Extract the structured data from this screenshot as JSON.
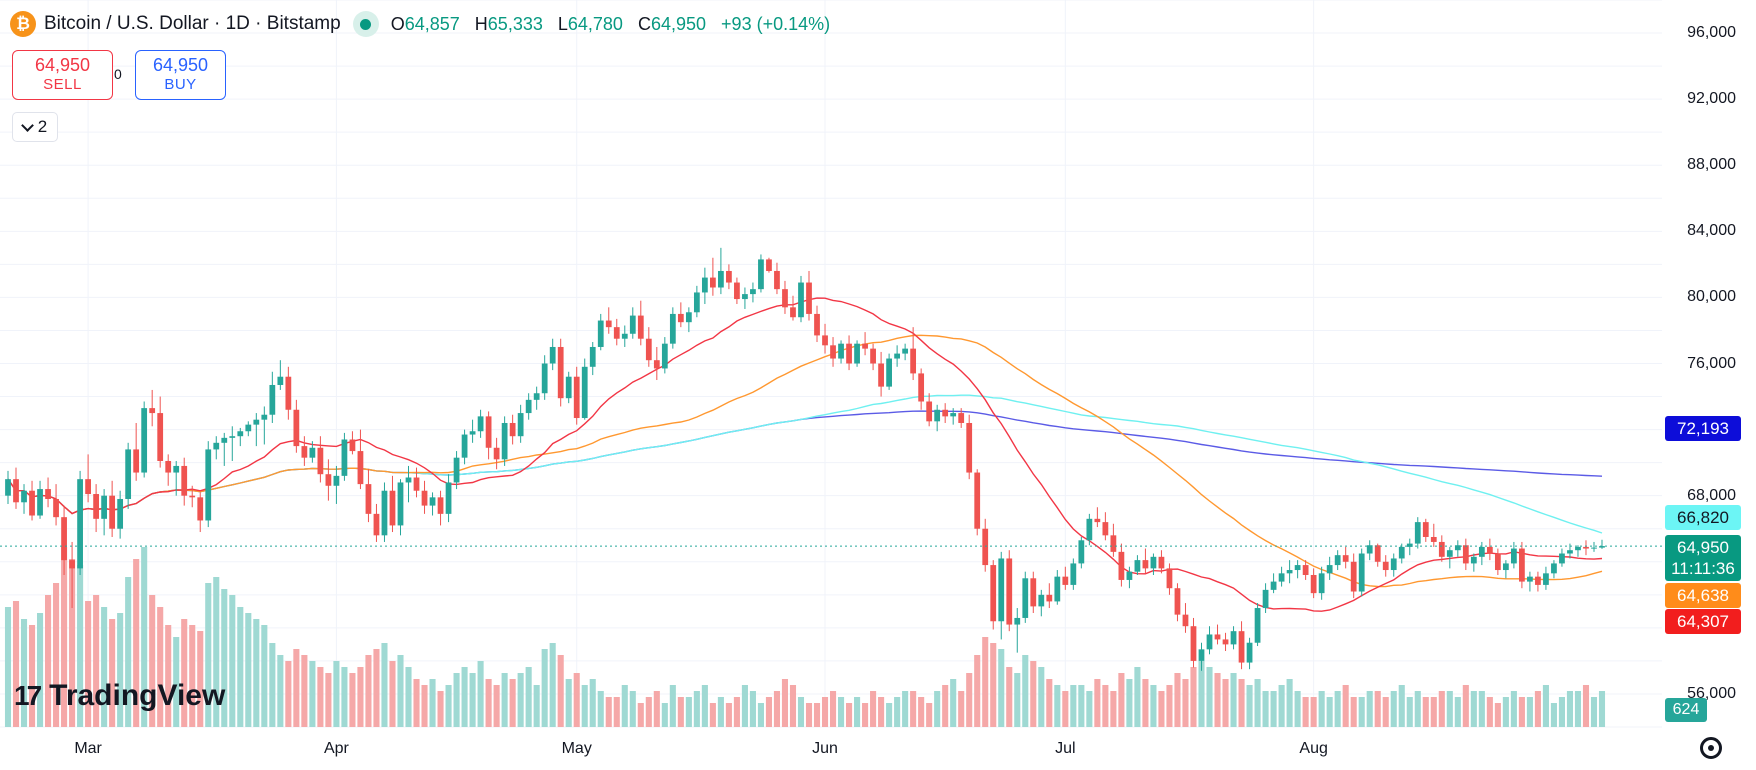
{
  "header": {
    "symbol": "Bitcoin / U.S. Dollar · 1D · Bitstamp",
    "coin_glyph": "₿",
    "ohlc": {
      "open_label": "O",
      "open": "64,857",
      "high_label": "H",
      "high": "65,333",
      "low_label": "L",
      "low": "64,780",
      "close_label": "C",
      "close": "64,950",
      "change": "+93 (+0.14%)"
    }
  },
  "trade": {
    "sell_price": "64,950",
    "sell_label": "SELL",
    "buy_price": "64,950",
    "buy_label": "BUY",
    "spread": "0"
  },
  "indicators_toggle": {
    "count": "2"
  },
  "price_tags": {
    "ma200": "72,193",
    "ma100": "66,820",
    "close": "64,950",
    "countdown": "11:11:36",
    "ma50": "64,638",
    "ma20": "64,307",
    "volume": "624"
  },
  "branding": {
    "logo_mark": "17",
    "logo_text": "TradingView"
  },
  "colors": {
    "up": "#26a69a",
    "down": "#ef5350",
    "ma20": "#f23645",
    "ma50": "#ff9830",
    "ma100": "#6ff0f0",
    "ma200": "#5b5be6",
    "tag_ma200": "#0d0dd9",
    "tag_ma100": "#6cf5f5",
    "tag_ma50": "#ff8c1a",
    "tag_ma20": "#f21e1e",
    "vol_up": "#9fd9d3",
    "vol_down": "#f5a8a8"
  },
  "chart_data": {
    "type": "candlestick",
    "title": "Bitcoin / U.S. Dollar · 1D · Bitstamp",
    "ylim": [
      54000,
      98000
    ],
    "yticks": [
      "96,000",
      "92,000",
      "88,000",
      "84,000",
      "80,000",
      "76,000",
      "68,000",
      "56,000"
    ],
    "xticks": [
      {
        "label": "Mar",
        "date": "2024-03-01"
      },
      {
        "label": "Apr",
        "date": "2024-04-01"
      },
      {
        "label": "May",
        "date": "2024-05-01"
      },
      {
        "label": "Jun",
        "date": "2024-06-01"
      },
      {
        "label": "Jul",
        "date": "2024-07-01"
      },
      {
        "label": "Aug",
        "date": "2024-08-01"
      }
    ],
    "start_date": "2024-02-20",
    "last_close": 64950,
    "candles": [
      [
        68000,
        69500,
        67500,
        69000
      ],
      [
        69000,
        69700,
        67200,
        67600
      ],
      [
        67600,
        68700,
        66900,
        68300
      ],
      [
        68300,
        68900,
        66500,
        66800
      ],
      [
        66800,
        68900,
        66600,
        68400
      ],
      [
        68400,
        69100,
        67300,
        67800
      ],
      [
        67800,
        68700,
        66200,
        66700
      ],
      [
        66700,
        67400,
        63200,
        64100
      ],
      [
        64100,
        65200,
        61200,
        63600
      ],
      [
        63600,
        69500,
        63200,
        69000
      ],
      [
        69000,
        70500,
        67600,
        68100
      ],
      [
        68100,
        68700,
        65800,
        66600
      ],
      [
        66600,
        68400,
        65600,
        68000
      ],
      [
        68000,
        68900,
        65500,
        66000
      ],
      [
        66000,
        68300,
        65400,
        67800
      ],
      [
        67800,
        71200,
        67200,
        70800
      ],
      [
        70800,
        72400,
        68900,
        69400
      ],
      [
        69400,
        73700,
        69100,
        73300
      ],
      [
        73300,
        74400,
        72200,
        73000
      ],
      [
        73000,
        74000,
        69700,
        70100
      ],
      [
        70100,
        70500,
        68600,
        69400
      ],
      [
        69400,
        70100,
        68000,
        69800
      ],
      [
        69800,
        70300,
        67400,
        68000
      ],
      [
        68000,
        68600,
        67300,
        67900
      ],
      [
        67900,
        68200,
        65800,
        66500
      ],
      [
        66500,
        71300,
        66100,
        70800
      ],
      [
        70800,
        71600,
        70200,
        71200
      ],
      [
        71200,
        71800,
        69800,
        71500
      ],
      [
        71500,
        72200,
        70100,
        71600
      ],
      [
        71600,
        72100,
        71000,
        71900
      ],
      [
        71900,
        72500,
        71600,
        72300
      ],
      [
        72300,
        73000,
        71000,
        72600
      ],
      [
        72600,
        73400,
        71100,
        72900
      ],
      [
        72900,
        75500,
        72400,
        74700
      ],
      [
        74700,
        76200,
        74400,
        75200
      ],
      [
        75200,
        75800,
        72600,
        73200
      ],
      [
        73200,
        73800,
        70600,
        71000
      ],
      [
        71000,
        71600,
        69800,
        70300
      ],
      [
        70300,
        71300,
        70000,
        70900
      ],
      [
        70900,
        71600,
        68800,
        69300
      ],
      [
        69300,
        70200,
        67700,
        68600
      ],
      [
        68600,
        69800,
        67500,
        69200
      ],
      [
        69200,
        71800,
        68900,
        71400
      ],
      [
        71400,
        71900,
        70500,
        70700
      ],
      [
        70700,
        72000,
        68400,
        68700
      ],
      [
        68700,
        69600,
        66400,
        66900
      ],
      [
        66900,
        67500,
        65200,
        65600
      ],
      [
        65600,
        68800,
        65200,
        68300
      ],
      [
        68300,
        69200,
        65800,
        66200
      ],
      [
        66200,
        69000,
        65600,
        68800
      ],
      [
        68800,
        69800,
        67600,
        69100
      ],
      [
        69100,
        69700,
        67900,
        68300
      ],
      [
        68300,
        68900,
        66900,
        67400
      ],
      [
        67400,
        68200,
        66800,
        67900
      ],
      [
        67900,
        68300,
        66200,
        66900
      ],
      [
        66900,
        69300,
        66400,
        68800
      ],
      [
        68800,
        70700,
        68400,
        70300
      ],
      [
        70300,
        72000,
        69900,
        71700
      ],
      [
        71700,
        72600,
        71200,
        71900
      ],
      [
        71900,
        73200,
        71500,
        72800
      ],
      [
        72800,
        73100,
        70200,
        70900
      ],
      [
        70900,
        71500,
        69600,
        70200
      ],
      [
        70200,
        72800,
        69800,
        72400
      ],
      [
        72400,
        72900,
        71100,
        71600
      ],
      [
        71600,
        73500,
        71200,
        73000
      ],
      [
        73000,
        74200,
        72600,
        73800
      ],
      [
        73800,
        74600,
        73200,
        74200
      ],
      [
        74200,
        76500,
        73800,
        76000
      ],
      [
        76000,
        77500,
        75600,
        77000
      ],
      [
        77000,
        77500,
        73400,
        73900
      ],
      [
        73900,
        75500,
        73600,
        75200
      ],
      [
        75200,
        75800,
        72300,
        72700
      ],
      [
        72700,
        76300,
        72600,
        75800
      ],
      [
        75800,
        77300,
        75300,
        77000
      ],
      [
        77000,
        79000,
        76800,
        78600
      ],
      [
        78600,
        79400,
        77800,
        78200
      ],
      [
        78200,
        78700,
        77100,
        77500
      ],
      [
        77500,
        78300,
        77000,
        77800
      ],
      [
        77800,
        79400,
        77500,
        78900
      ],
      [
        78900,
        79800,
        77100,
        77500
      ],
      [
        77500,
        78200,
        75800,
        76200
      ],
      [
        76200,
        77000,
        75000,
        75700
      ],
      [
        75700,
        77600,
        75400,
        77200
      ],
      [
        77200,
        79400,
        76900,
        79000
      ],
      [
        79000,
        79700,
        78200,
        78500
      ],
      [
        78500,
        79400,
        77900,
        79100
      ],
      [
        79100,
        80700,
        78800,
        80300
      ],
      [
        80300,
        81800,
        79600,
        81200
      ],
      [
        81200,
        82400,
        80100,
        80600
      ],
      [
        80600,
        83000,
        80200,
        81600
      ],
      [
        81600,
        82000,
        80500,
        80900
      ],
      [
        80900,
        81200,
        79600,
        79900
      ],
      [
        79900,
        80600,
        79300,
        80200
      ],
      [
        80200,
        80900,
        79700,
        80500
      ],
      [
        80500,
        82600,
        80300,
        82300
      ],
      [
        82300,
        82400,
        81500,
        81600
      ],
      [
        81600,
        82100,
        80200,
        80500
      ],
      [
        80500,
        81000,
        79000,
        79400
      ],
      [
        79400,
        80100,
        78600,
        78800
      ],
      [
        78800,
        81300,
        78500,
        80900
      ],
      [
        80900,
        81600,
        78600,
        79000
      ],
      [
        79000,
        79500,
        77300,
        77700
      ],
      [
        77700,
        78400,
        76600,
        77100
      ],
      [
        77100,
        77600,
        75800,
        76300
      ],
      [
        76300,
        77400,
        76000,
        77200
      ],
      [
        77200,
        77700,
        75600,
        76000
      ],
      [
        76000,
        77400,
        75800,
        77200
      ],
      [
        77200,
        77900,
        76500,
        76900
      ],
      [
        76900,
        77200,
        75600,
        76000
      ],
      [
        76000,
        76700,
        74000,
        74600
      ],
      [
        74600,
        76600,
        74400,
        76300
      ],
      [
        76300,
        77100,
        75800,
        76600
      ],
      [
        76600,
        77200,
        76200,
        76900
      ],
      [
        76900,
        78200,
        75000,
        75400
      ],
      [
        75400,
        75700,
        73200,
        73700
      ],
      [
        73700,
        74200,
        72200,
        72500
      ],
      [
        72500,
        73500,
        71900,
        73200
      ],
      [
        73200,
        73600,
        72400,
        72800
      ],
      [
        72800,
        73300,
        72300,
        73000
      ],
      [
        73000,
        73300,
        72100,
        72400
      ],
      [
        72400,
        72900,
        69000,
        69400
      ],
      [
        69400,
        69600,
        65600,
        66000
      ],
      [
        66000,
        66600,
        63400,
        63800
      ],
      [
        63800,
        64100,
        59900,
        60400
      ],
      [
        60400,
        64600,
        59300,
        64200
      ],
      [
        64200,
        64700,
        59800,
        60200
      ],
      [
        60200,
        61200,
        58500,
        60600
      ],
      [
        60600,
        63400,
        60300,
        63000
      ],
      [
        63000,
        63400,
        60900,
        61300
      ],
      [
        61300,
        62300,
        60700,
        62000
      ],
      [
        62000,
        62700,
        61200,
        61600
      ],
      [
        61600,
        63500,
        61400,
        63100
      ],
      [
        63100,
        63700,
        62300,
        62600
      ],
      [
        62600,
        64200,
        62300,
        63900
      ],
      [
        63900,
        65500,
        63600,
        65300
      ],
      [
        65300,
        66900,
        65000,
        66600
      ],
      [
        66600,
        67300,
        66100,
        66400
      ],
      [
        66400,
        67000,
        65300,
        65600
      ],
      [
        65600,
        66300,
        64300,
        64600
      ],
      [
        64600,
        65100,
        62500,
        62900
      ],
      [
        62900,
        63700,
        62400,
        63400
      ],
      [
        63400,
        64400,
        63200,
        64100
      ],
      [
        64100,
        64800,
        63300,
        63600
      ],
      [
        63600,
        64500,
        63200,
        64300
      ],
      [
        64300,
        64700,
        63300,
        63600
      ],
      [
        63600,
        63900,
        62000,
        62400
      ],
      [
        62400,
        62700,
        60400,
        60800
      ],
      [
        60800,
        61500,
        59700,
        60100
      ],
      [
        60100,
        60600,
        57600,
        58000
      ],
      [
        58000,
        59100,
        57400,
        58700
      ],
      [
        58700,
        60100,
        58400,
        59600
      ],
      [
        59600,
        60200,
        59000,
        59300
      ],
      [
        59300,
        59700,
        58600,
        59000
      ],
      [
        59000,
        60100,
        58700,
        59800
      ],
      [
        59800,
        60400,
        57500,
        57900
      ],
      [
        57900,
        59400,
        57500,
        59100
      ],
      [
        59100,
        61500,
        58900,
        61200
      ],
      [
        61200,
        62700,
        60900,
        62300
      ],
      [
        62300,
        63300,
        62100,
        62800
      ],
      [
        62800,
        63700,
        62500,
        63300
      ],
      [
        63300,
        64100,
        62700,
        63500
      ],
      [
        63500,
        64100,
        63000,
        63800
      ],
      [
        63800,
        64100,
        62900,
        63200
      ],
      [
        63200,
        63600,
        61800,
        62100
      ],
      [
        62100,
        63700,
        61700,
        63300
      ],
      [
        63300,
        64300,
        62900,
        63800
      ],
      [
        63800,
        64700,
        63500,
        64400
      ],
      [
        64400,
        64900,
        63600,
        64000
      ],
      [
        64000,
        64500,
        61800,
        62200
      ],
      [
        62200,
        64800,
        61900,
        64500
      ],
      [
        64500,
        65300,
        64100,
        65000
      ],
      [
        65000,
        65100,
        63700,
        64000
      ],
      [
        64000,
        64400,
        63100,
        63500
      ],
      [
        63500,
        64500,
        63100,
        64200
      ],
      [
        64200,
        65100,
        63900,
        64900
      ],
      [
        64900,
        65400,
        64400,
        65100
      ],
      [
        65100,
        66700,
        64800,
        66400
      ],
      [
        66400,
        66600,
        65200,
        65500
      ],
      [
        65500,
        66300,
        64900,
        65200
      ],
      [
        65200,
        65600,
        64000,
        64300
      ],
      [
        64300,
        64900,
        63600,
        64700
      ],
      [
        64700,
        65300,
        64300,
        65000
      ],
      [
        65000,
        65400,
        63500,
        63900
      ],
      [
        63900,
        64500,
        63400,
        64300
      ],
      [
        64300,
        65200,
        63800,
        64900
      ],
      [
        64900,
        65400,
        64100,
        64500
      ],
      [
        64500,
        64800,
        63200,
        63500
      ],
      [
        63500,
        64100,
        63000,
        63900
      ],
      [
        63900,
        65200,
        63600,
        64800
      ],
      [
        64800,
        65200,
        62400,
        62800
      ],
      [
        62800,
        63400,
        62200,
        63100
      ],
      [
        63100,
        63400,
        62200,
        62600
      ],
      [
        62600,
        63700,
        62300,
        63300
      ],
      [
        63300,
        64100,
        63000,
        63900
      ],
      [
        63900,
        64800,
        63700,
        64500
      ],
      [
        64500,
        65100,
        64200,
        64700
      ],
      [
        64700,
        65000,
        64300,
        64900
      ],
      [
        64900,
        65300,
        64400,
        64800
      ],
      [
        64800,
        65200,
        64600,
        64857
      ],
      [
        64857,
        65333,
        64780,
        64950
      ]
    ],
    "volumes": [
      20,
      21,
      18,
      17,
      19,
      22,
      24,
      30,
      28,
      27,
      21,
      22,
      20,
      18,
      19,
      25,
      28,
      30,
      22,
      20,
      17,
      15,
      18,
      17,
      16,
      24,
      25,
      23,
      22,
      20,
      19,
      18,
      17,
      14,
      12,
      11,
      13,
      12,
      11,
      10,
      9,
      11,
      10,
      9,
      10,
      12,
      13,
      14,
      11,
      12,
      10,
      8,
      7,
      8,
      6,
      7,
      9,
      10,
      9,
      11,
      8,
      7,
      9,
      8,
      9,
      10,
      7,
      13,
      14,
      12,
      8,
      9,
      7,
      8,
      6,
      5,
      5,
      7,
      6,
      4,
      5,
      6,
      4,
      7,
      5,
      5,
      6,
      7,
      4,
      5,
      4,
      5,
      7,
      6,
      4,
      5,
      6,
      8,
      7,
      5,
      4,
      4,
      5,
      6,
      5,
      4,
      5,
      4,
      6,
      5,
      4,
      5,
      6,
      6,
      5,
      4,
      6,
      7,
      8,
      6,
      9,
      12,
      15,
      14,
      13,
      10,
      9,
      12,
      11,
      10,
      8,
      7,
      6,
      7,
      7,
      6,
      8,
      7,
      6,
      9,
      8,
      10,
      8,
      7,
      6,
      7,
      9,
      8,
      10,
      11,
      10,
      9,
      8,
      9,
      8,
      7,
      8,
      6,
      6,
      7,
      8,
      6,
      5,
      5,
      6,
      5,
      6,
      7,
      5,
      5,
      6,
      6,
      5,
      6,
      7,
      5,
      6,
      5,
      5,
      6,
      6,
      5,
      7,
      6,
      6,
      5,
      4,
      5,
      6,
      5,
      5,
      6,
      7,
      4,
      5,
      6,
      6,
      7,
      5,
      6,
      5,
      7,
      6,
      7,
      8,
      8,
      9
    ]
  }
}
